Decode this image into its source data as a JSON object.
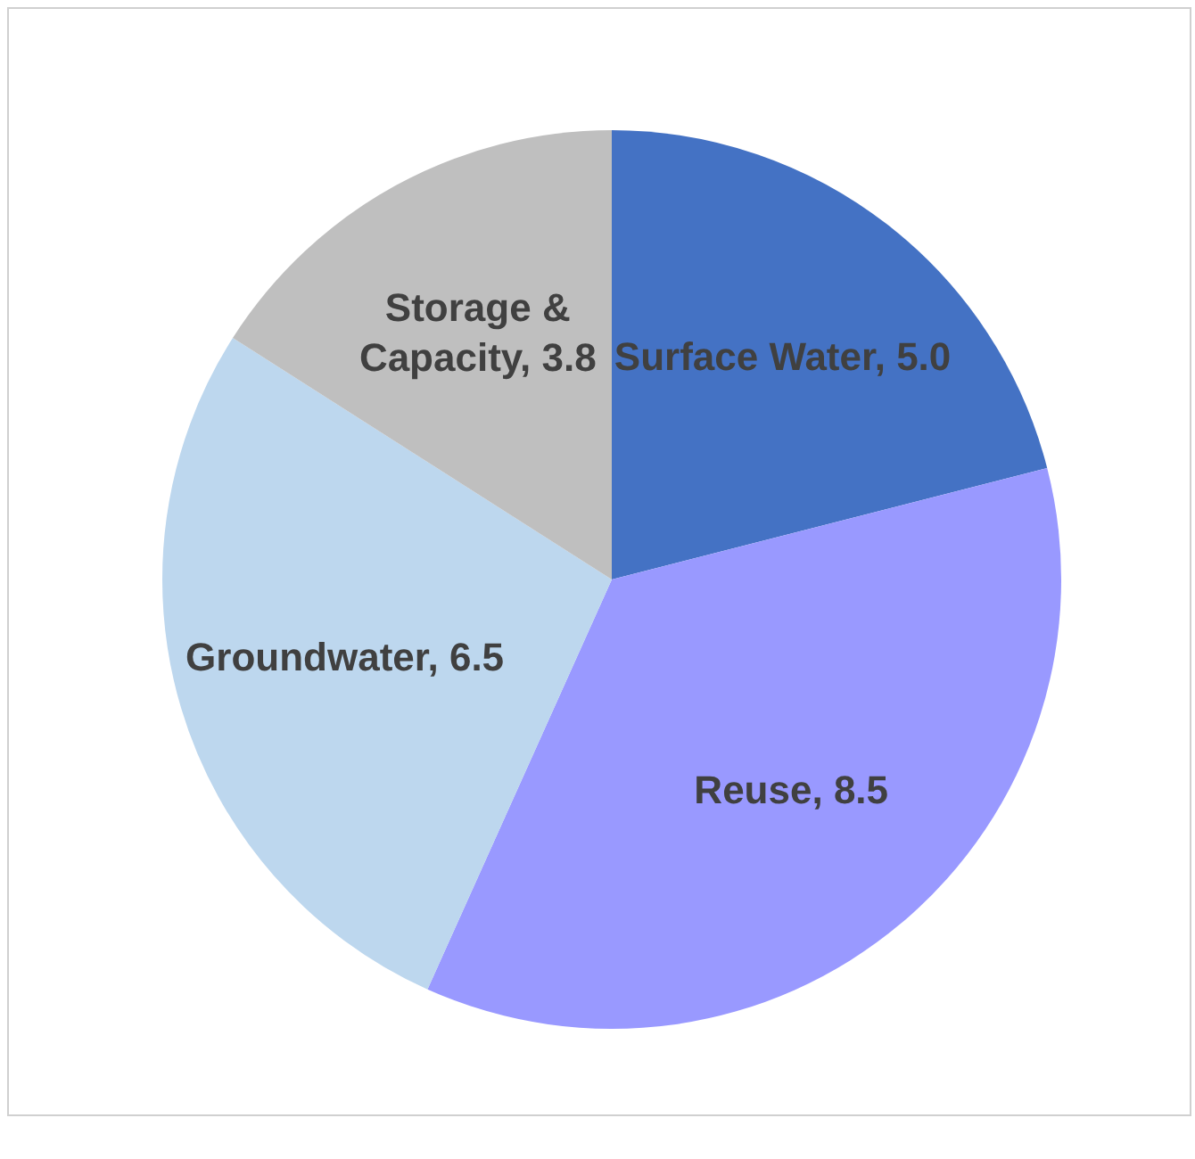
{
  "chart_data": {
    "type": "pie",
    "categories": [
      "Surface Water",
      "Reuse",
      "Groundwater",
      "Storage & Capacity"
    ],
    "values": [
      5.0,
      8.5,
      6.5,
      3.8
    ],
    "value_labels": [
      "5.0",
      "8.5",
      "6.5",
      "3.8"
    ],
    "colors": [
      "#4472c4",
      "#9999ff",
      "#bdd7ee",
      "#bfbfbf"
    ],
    "legend": false
  }
}
